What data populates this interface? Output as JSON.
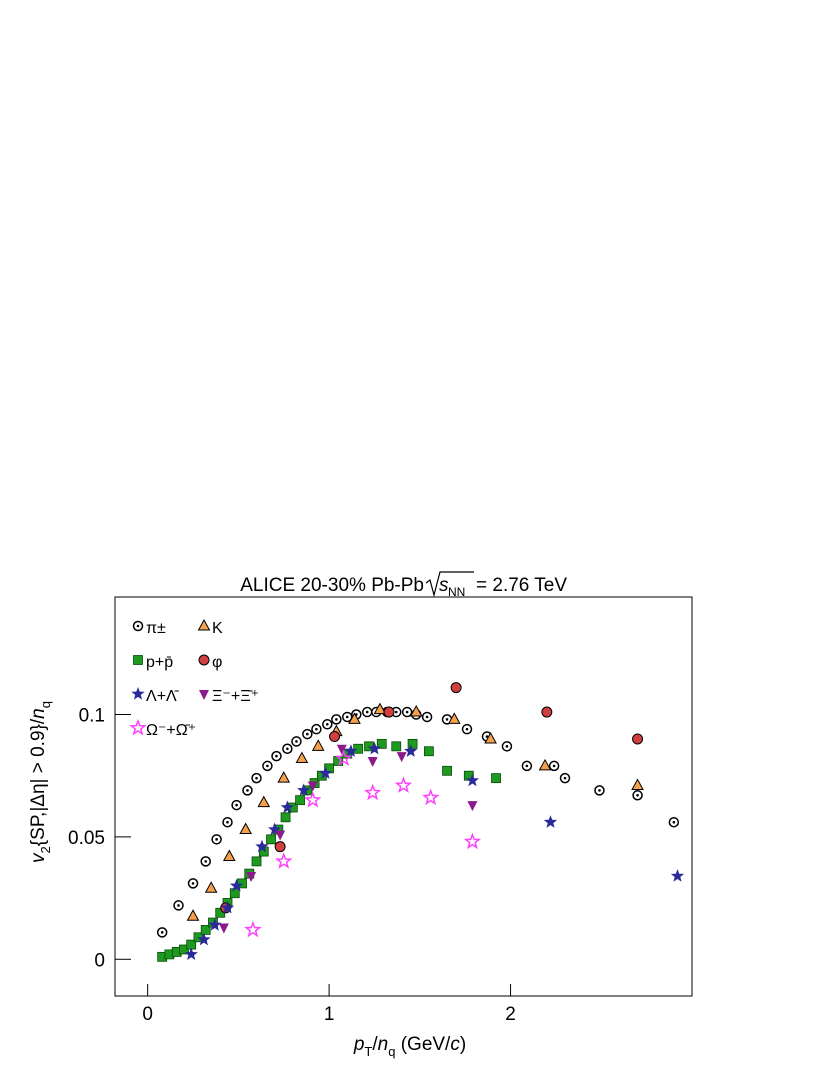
{
  "chart_data": {
    "type": "scatter",
    "title": "ALICE 20-30% Pb-Pb",
    "title_sqrt_arg": "s",
    "title_sqrt_sub": "NN",
    "title_tail": "= 2.76 TeV",
    "xlabel": [
      "p",
      "T",
      "/",
      "n",
      "q",
      " (GeV/",
      "c",
      ")"
    ],
    "ylabel": [
      "v",
      "2",
      "{SP,|Δη| > 0.9}/",
      "n",
      "q"
    ],
    "xlim": [
      -0.18,
      3.0
    ],
    "ylim": [
      -0.015,
      0.148
    ],
    "xticks": [
      0,
      1,
      2
    ],
    "yticks": [
      0,
      0.05,
      0.1
    ],
    "series": [
      {
        "name": "π±",
        "color": "#000000",
        "marker": "circle-dot",
        "x": [
          0.08,
          0.17,
          0.25,
          0.32,
          0.38,
          0.44,
          0.49,
          0.55,
          0.6,
          0.66,
          0.71,
          0.77,
          0.82,
          0.88,
          0.93,
          0.99,
          1.04,
          1.1,
          1.15,
          1.21,
          1.26,
          1.32,
          1.37,
          1.43,
          1.48,
          1.54,
          1.65,
          1.76,
          1.87,
          1.98,
          2.09,
          2.24,
          2.3,
          2.49,
          2.7,
          2.9
        ],
        "values": [
          0.011,
          0.022,
          0.031,
          0.04,
          0.049,
          0.056,
          0.063,
          0.069,
          0.074,
          0.079,
          0.083,
          0.086,
          0.089,
          0.092,
          0.094,
          0.096,
          0.098,
          0.099,
          0.1,
          0.101,
          0.101,
          0.101,
          0.101,
          0.101,
          0.1,
          0.099,
          0.098,
          0.094,
          0.091,
          0.087,
          0.079,
          0.079,
          0.074,
          0.069,
          0.067,
          0.056
        ]
      },
      {
        "name": "K",
        "color": "#f5a04a",
        "marker": "triangle",
        "x": [
          0.25,
          0.35,
          0.45,
          0.54,
          0.64,
          0.75,
          0.85,
          0.94,
          1.04,
          1.14,
          1.28,
          1.48,
          1.69,
          1.89,
          2.19,
          2.7
        ],
        "values": [
          0.0176,
          0.029,
          0.042,
          0.053,
          0.064,
          0.074,
          0.082,
          0.087,
          0.093,
          0.098,
          0.102,
          0.101,
          0.098,
          0.09,
          0.079,
          0.071
        ]
      },
      {
        "name": "p+p̄",
        "color": "#1e9a1e",
        "marker": "square",
        "x": [
          0.08,
          0.12,
          0.16,
          0.2,
          0.24,
          0.28,
          0.32,
          0.36,
          0.4,
          0.44,
          0.48,
          0.52,
          0.56,
          0.6,
          0.64,
          0.68,
          0.72,
          0.76,
          0.8,
          0.84,
          0.88,
          0.92,
          0.96,
          1.0,
          1.05,
          1.1,
          1.16,
          1.22,
          1.29,
          1.37,
          1.46,
          1.55,
          1.65,
          1.77,
          1.92
        ],
        "values": [
          0.001,
          0.002,
          0.003,
          0.004,
          0.006,
          0.009,
          0.012,
          0.015,
          0.019,
          0.023,
          0.027,
          0.031,
          0.035,
          0.04,
          0.044,
          0.049,
          0.053,
          0.058,
          0.062,
          0.065,
          0.069,
          0.072,
          0.075,
          0.078,
          0.081,
          0.084,
          0.086,
          0.087,
          0.088,
          0.087,
          0.088,
          0.085,
          0.077,
          0.075,
          0.074
        ]
      },
      {
        "name": "φ",
        "color": "#d04040",
        "marker": "circle",
        "x": [
          0.43,
          0.73,
          1.03,
          1.33,
          1.7,
          2.2,
          2.7
        ],
        "values": [
          0.021,
          0.046,
          0.091,
          0.101,
          0.111,
          0.101,
          0.09
        ]
      },
      {
        "name": "Λ+Λ̄",
        "color": "#2a2a9a",
        "marker": "star",
        "x": [
          0.24,
          0.31,
          0.37,
          0.44,
          0.49,
          0.63,
          0.7,
          0.77,
          0.86,
          0.98,
          1.12,
          1.25,
          1.45,
          1.79,
          2.22,
          2.92
        ],
        "values": [
          0.002,
          0.008,
          0.014,
          0.021,
          0.03,
          0.046,
          0.053,
          0.062,
          0.069,
          0.076,
          0.085,
          0.086,
          0.085,
          0.073,
          0.056,
          0.034
        ]
      },
      {
        "name": "Ξ⁻+Ξ̄⁺",
        "color": "#8b1a8b",
        "marker": "triangle-down",
        "x": [
          0.42,
          0.57,
          0.73,
          0.91,
          1.07,
          1.24,
          1.4,
          1.79
        ],
        "values": [
          0.013,
          0.034,
          0.051,
          0.071,
          0.086,
          0.081,
          0.083,
          0.063
        ]
      },
      {
        "name": "Ω⁻+Ω̄⁺",
        "color": "#ff40ff",
        "marker": "star-open",
        "x": [
          0.58,
          0.75,
          0.91,
          1.08,
          1.24,
          1.41,
          1.56,
          1.79
        ],
        "values": [
          0.012,
          0.04,
          0.065,
          0.082,
          0.068,
          0.071,
          0.066,
          0.048
        ]
      }
    ]
  }
}
